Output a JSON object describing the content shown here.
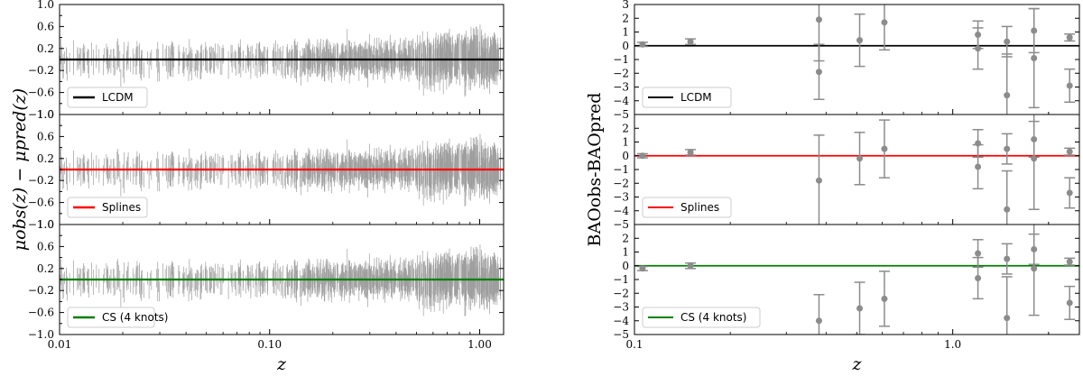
{
  "chart_data": [
    {
      "id": "sn-residuals",
      "type": "scatter",
      "subtype": "error-bars-residuals",
      "xlabel": "z",
      "ylabel": "μobs(z) − μpred(z)",
      "xscale": "log",
      "xlim": [
        0.01,
        1.3
      ],
      "ylim": [
        -1.0,
        1.0
      ],
      "x_ticks": [
        0.01,
        0.1,
        1.0
      ],
      "x_tick_labels": [
        "0.01",
        "0.10",
        "1.00"
      ],
      "y_ticks": [
        -1.0,
        -0.6,
        -0.2,
        0.2,
        0.6,
        1.0
      ],
      "y_tick_labels": [
        "−1.0",
        "−0.6",
        "−0.2",
        "0.2",
        "0.6",
        "1.0"
      ],
      "point_color": "#9e9e9e",
      "n_points": 1048,
      "z_range": [
        0.01,
        1.26
      ],
      "typical_error": 0.18,
      "panels": [
        {
          "legend": "LCDM",
          "line_value": 0.0,
          "color": "#000000"
        },
        {
          "legend": "Splines",
          "line_value": 0.0,
          "color": "#ff0000"
        },
        {
          "legend": "CS (4 knots)",
          "line_value": 0.0,
          "color": "#008000"
        }
      ],
      "legend_position": "lower-left",
      "grid": false
    },
    {
      "id": "bao-residuals",
      "type": "scatter",
      "subtype": "error-bars-residuals",
      "xlabel": "z",
      "ylabel": "BAOobs-BAOpred",
      "xscale": "log",
      "xlim": [
        0.1,
        2.5
      ],
      "ylim": [
        -5,
        3
      ],
      "x_ticks": [
        0.1,
        1.0
      ],
      "x_tick_labels": [
        "0.1",
        "1.0"
      ],
      "y_ticks": [
        -5,
        -4,
        -3,
        -2,
        -1,
        0,
        1,
        2,
        3
      ],
      "y_tick_labels": [
        "−5",
        "−4",
        "−3",
        "−2",
        "−1",
        "0",
        "1",
        "2",
        "3"
      ],
      "point_color": "#8c8c8c",
      "panels": [
        {
          "legend": "LCDM",
          "line_value": 0.0,
          "color": "#000000",
          "points": [
            {
              "x": 0.106,
              "y": 0.1,
              "err": 0.15
            },
            {
              "x": 0.15,
              "y": 0.3,
              "err": 0.2
            },
            {
              "x": 0.38,
              "y": 1.9,
              "err": 3.0
            },
            {
              "x": 0.38,
              "y": -1.9,
              "err": 2.0
            },
            {
              "x": 0.51,
              "y": 0.4,
              "err": 1.9
            },
            {
              "x": 0.61,
              "y": 1.7,
              "err": 2.0
            },
            {
              "x": 1.2,
              "y": 0.8,
              "err": 1.0
            },
            {
              "x": 1.2,
              "y": -0.2,
              "err": 1.5
            },
            {
              "x": 1.48,
              "y": 0.3,
              "err": 1.1
            },
            {
              "x": 1.48,
              "y": -3.6,
              "err": 3.0
            },
            {
              "x": 1.8,
              "y": 1.1,
              "err": 1.6
            },
            {
              "x": 1.8,
              "y": -0.9,
              "err": 3.6
            },
            {
              "x": 2.33,
              "y": 0.6,
              "err": 0.25
            },
            {
              "x": 2.33,
              "y": -2.9,
              "err": 1.2
            }
          ]
        },
        {
          "legend": "Splines",
          "line_value": 0.0,
          "color": "#ff0000",
          "points": [
            {
              "x": 0.106,
              "y": 0.0,
              "err": 0.15
            },
            {
              "x": 0.15,
              "y": 0.25,
              "err": 0.2
            },
            {
              "x": 0.38,
              "y": -1.8,
              "err": 3.3
            },
            {
              "x": 0.51,
              "y": -0.2,
              "err": 1.9
            },
            {
              "x": 0.61,
              "y": 0.5,
              "err": 2.1
            },
            {
              "x": 1.2,
              "y": 0.9,
              "err": 1.0
            },
            {
              "x": 1.2,
              "y": -0.8,
              "err": 1.6
            },
            {
              "x": 1.48,
              "y": 0.5,
              "err": 1.1
            },
            {
              "x": 1.48,
              "y": -3.9,
              "err": 2.8
            },
            {
              "x": 1.8,
              "y": 1.2,
              "err": 1.3
            },
            {
              "x": 1.8,
              "y": -0.2,
              "err": 3.7
            },
            {
              "x": 2.33,
              "y": 0.3,
              "err": 0.25
            },
            {
              "x": 2.33,
              "y": -2.7,
              "err": 1.1
            }
          ]
        },
        {
          "legend": "CS (4 knots)",
          "line_value": 0.0,
          "color": "#008000",
          "points": [
            {
              "x": 0.106,
              "y": -0.2,
              "err": 0.15
            },
            {
              "x": 0.15,
              "y": 0.0,
              "err": 0.2
            },
            {
              "x": 0.38,
              "y": -4.0,
              "err": 1.9
            },
            {
              "x": 0.51,
              "y": -3.1,
              "err": 1.9
            },
            {
              "x": 0.61,
              "y": -2.4,
              "err": 2.0
            },
            {
              "x": 1.2,
              "y": 0.9,
              "err": 1.0
            },
            {
              "x": 1.2,
              "y": -0.9,
              "err": 1.5
            },
            {
              "x": 1.48,
              "y": 0.5,
              "err": 1.1
            },
            {
              "x": 1.48,
              "y": -3.8,
              "err": 3.0
            },
            {
              "x": 1.8,
              "y": 1.2,
              "err": 1.1
            },
            {
              "x": 1.8,
              "y": -0.2,
              "err": 3.4
            },
            {
              "x": 2.33,
              "y": 0.3,
              "err": 0.25
            },
            {
              "x": 2.33,
              "y": -2.7,
              "err": 1.2
            }
          ]
        }
      ],
      "legend_position": "lower-left",
      "grid": false
    }
  ]
}
